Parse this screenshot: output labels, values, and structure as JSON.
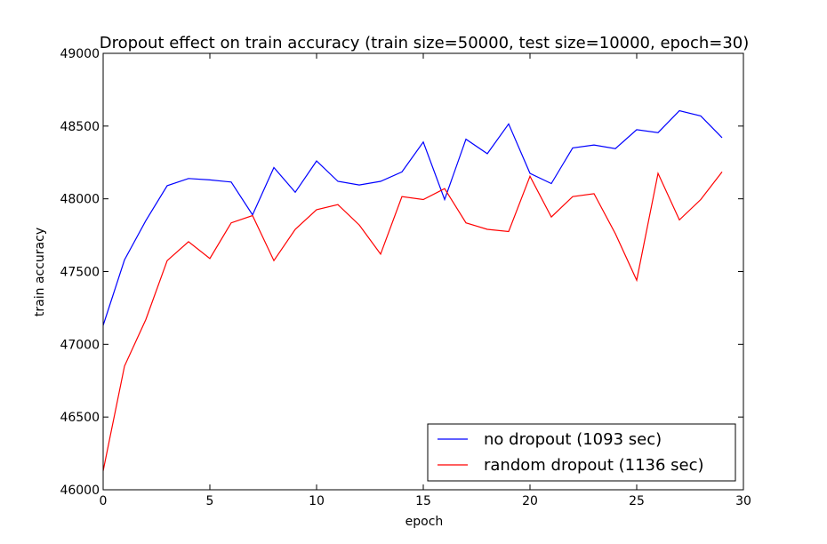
{
  "chart_data": {
    "type": "line",
    "title": "Dropout effect on train accuracy (train size=50000, test size=10000, epoch=30)",
    "xlabel": "epoch",
    "ylabel": "train accuracy",
    "xlim": [
      0,
      30
    ],
    "ylim": [
      46000,
      49000
    ],
    "xticks": [
      0,
      5,
      10,
      15,
      20,
      25,
      30
    ],
    "yticks": [
      46000,
      46500,
      47000,
      47500,
      48000,
      48500,
      49000
    ],
    "grid": false,
    "legend_position": "lower-right",
    "x": [
      0,
      1,
      2,
      3,
      4,
      5,
      6,
      7,
      8,
      9,
      10,
      11,
      12,
      13,
      14,
      15,
      16,
      17,
      18,
      19,
      20,
      21,
      22,
      23,
      24,
      25,
      26,
      27,
      28,
      29
    ],
    "series": [
      {
        "name": "no dropout (1093 sec)",
        "color": "#0000ff",
        "values": [
          47130,
          47580,
          47850,
          48090,
          48140,
          48130,
          48115,
          47890,
          48215,
          48045,
          48260,
          48120,
          48095,
          48120,
          48185,
          48390,
          47995,
          48410,
          48310,
          48515,
          48175,
          48105,
          48350,
          48370,
          48345,
          48475,
          48455,
          48605,
          48570,
          48420
        ]
      },
      {
        "name": "random dropout (1136 sec)",
        "color": "#ff0000",
        "values": [
          46130,
          46850,
          47170,
          47575,
          47705,
          47590,
          47835,
          47885,
          47575,
          47790,
          47925,
          47960,
          47820,
          47620,
          48015,
          47995,
          48070,
          47835,
          47790,
          47775,
          48155,
          47875,
          48015,
          48035,
          47760,
          47440,
          48175,
          47855,
          47995,
          48185
        ]
      }
    ]
  }
}
